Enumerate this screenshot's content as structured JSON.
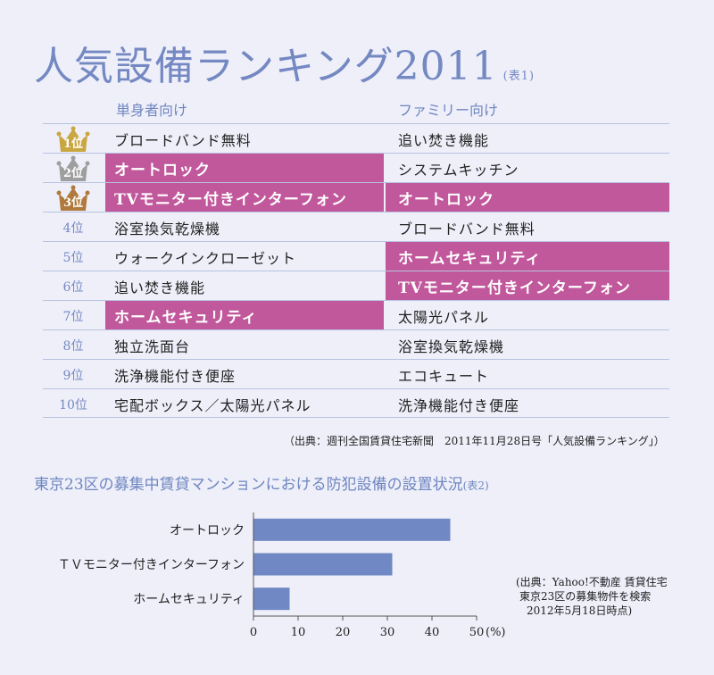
{
  "title": "人気設備ランキング2011",
  "title_note": "(表1)",
  "column_single": "単身者向け",
  "column_family": "ファミリー向け",
  "ranking": [
    {
      "rank": "1位",
      "single": "ブロードバンド無料",
      "single_hl": false,
      "family": "追い焚き機能",
      "family_hl": false,
      "crown": "gold"
    },
    {
      "rank": "2位",
      "single": "オートロック",
      "single_hl": true,
      "family": "システムキッチン",
      "family_hl": false,
      "crown": "silver"
    },
    {
      "rank": "3位",
      "single": "TVモニター付きインターフォン",
      "single_hl": true,
      "family": "オートロック",
      "family_hl": true,
      "crown": "bronze"
    },
    {
      "rank": "4位",
      "single": "浴室換気乾燥機",
      "single_hl": false,
      "family": "ブロードバンド無料",
      "family_hl": false
    },
    {
      "rank": "5位",
      "single": "ウォークインクローゼット",
      "single_hl": false,
      "family": "ホームセキュリティ",
      "family_hl": true
    },
    {
      "rank": "6位",
      "single": "追い焚き機能",
      "single_hl": false,
      "family": "TVモニター付きインターフォン",
      "family_hl": true
    },
    {
      "rank": "7位",
      "single": "ホームセキュリティ",
      "single_hl": true,
      "family": "太陽光パネル",
      "family_hl": false
    },
    {
      "rank": "8位",
      "single": "独立洗面台",
      "single_hl": false,
      "family": "浴室換気乾燥機",
      "family_hl": false
    },
    {
      "rank": "9位",
      "single": "洗浄機能付き便座",
      "single_hl": false,
      "family": "エコキュート",
      "family_hl": false
    },
    {
      "rank": "10位",
      "single": "宅配ボックス／太陽光パネル",
      "single_hl": false,
      "family": "洗浄機能付き便座",
      "family_hl": false
    }
  ],
  "source1": "（出典：週刊全国賃貸住宅新聞　2011年11月28日号「人気設備ランキング」）",
  "subtitle": "東京23区の募集中賃貸マンションにおける防犯設備の設置状況",
  "subtitle_note": "(表2)",
  "source2_lines": [
    "(出典：Yahoo!不動産 賃貸住宅",
    "東京23区の募集物件を検索",
    "2012年5月18日時点)"
  ],
  "colors": {
    "accent": "#7488c2",
    "highlight": "#c1589c",
    "bar": "#7088c4",
    "gold": "#c9a640",
    "silver": "#9e9e9e",
    "bronze": "#b07a3c"
  },
  "chart_data": {
    "type": "bar",
    "orientation": "horizontal",
    "categories": [
      "オートロック",
      "ＴＶモニター付きインターフォン",
      "ホームセキュリティ"
    ],
    "values": [
      44,
      31,
      8
    ],
    "xlim": [
      0,
      50
    ],
    "xticks": [
      "0",
      "10",
      "20",
      "30",
      "40",
      "50"
    ],
    "xunit": "(%)",
    "grid": false
  }
}
